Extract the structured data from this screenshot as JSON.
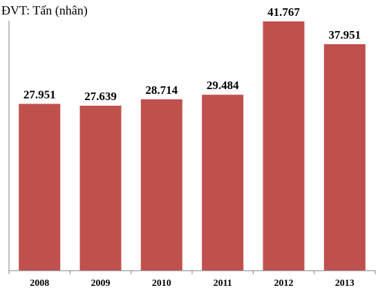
{
  "chart_data": {
    "type": "bar",
    "unit_label": "ĐVT: Tấn (nhân)",
    "categories": [
      "2008",
      "2009",
      "2010",
      "2011",
      "2012",
      "2013"
    ],
    "values": [
      27951,
      27639,
      28714,
      29484,
      41767,
      37951
    ],
    "value_labels": [
      "27.951",
      "27.639",
      "28.714",
      "29.484",
      "41.767",
      "37.951"
    ],
    "ylim": [
      0,
      42000
    ],
    "grid": false,
    "legend": "none",
    "colors": {
      "bar": "#c0504d",
      "axis": "#7f7f7f"
    }
  }
}
